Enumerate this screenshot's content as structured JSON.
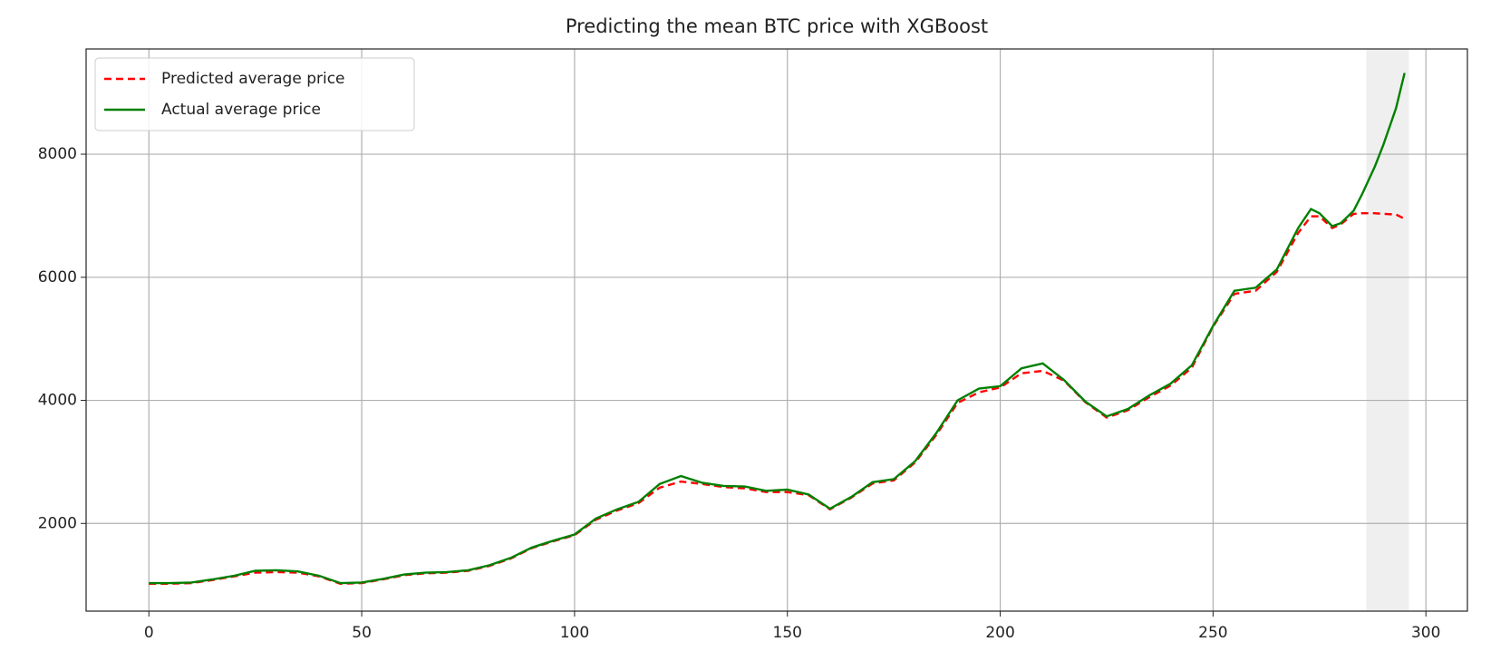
{
  "chart_data": {
    "type": "line",
    "title": "Predicting the mean BTC price with XGBoost",
    "x": [
      0,
      5,
      10,
      15,
      20,
      25,
      30,
      35,
      40,
      45,
      50,
      55,
      60,
      65,
      70,
      75,
      80,
      85,
      90,
      95,
      100,
      105,
      110,
      115,
      120,
      125,
      130,
      135,
      140,
      145,
      150,
      155,
      160,
      165,
      170,
      175,
      180,
      185,
      190,
      195,
      200,
      205,
      210,
      215,
      220,
      225,
      230,
      235,
      240,
      245,
      250,
      255,
      260,
      265,
      270,
      273,
      275,
      278,
      280,
      283,
      285,
      288,
      290,
      293,
      295
    ],
    "series": [
      {
        "name": "Predicted average price",
        "color": "red",
        "linestyle": "dashed",
        "values": [
          1020,
          1020,
          1030,
          1080,
          1140,
          1200,
          1210,
          1200,
          1140,
          1020,
          1030,
          1090,
          1160,
          1190,
          1200,
          1230,
          1310,
          1430,
          1600,
          1710,
          1810,
          2060,
          2210,
          2330,
          2580,
          2680,
          2640,
          2590,
          2570,
          2510,
          2510,
          2460,
          2230,
          2420,
          2650,
          2700,
          2990,
          3440,
          3960,
          4130,
          4210,
          4440,
          4480,
          4320,
          3970,
          3720,
          3840,
          4050,
          4240,
          4530,
          5200,
          5730,
          5780,
          6090,
          6720,
          6990,
          6990,
          6800,
          6860,
          7030,
          7040,
          7040,
          7030,
          7020,
          6950
        ]
      },
      {
        "name": "Actual average price",
        "color": "green",
        "linestyle": "solid",
        "values": [
          1030,
          1030,
          1040,
          1090,
          1150,
          1230,
          1240,
          1220,
          1150,
          1030,
          1040,
          1100,
          1170,
          1200,
          1210,
          1240,
          1320,
          1440,
          1610,
          1720,
          1820,
          2080,
          2230,
          2350,
          2640,
          2770,
          2660,
          2610,
          2600,
          2530,
          2550,
          2470,
          2240,
          2430,
          2670,
          2720,
          3010,
          3470,
          4000,
          4190,
          4230,
          4520,
          4600,
          4330,
          3980,
          3740,
          3860,
          4080,
          4270,
          4570,
          5210,
          5780,
          5830,
          6130,
          6800,
          7110,
          7040,
          6830,
          6880,
          7080,
          7350,
          7800,
          8150,
          8750,
          9320
        ]
      }
    ],
    "xlim": [
      -14.75,
      309.75
    ],
    "ylim": [
      575,
      9710
    ],
    "xticks": [
      0,
      50,
      100,
      150,
      200,
      250,
      300
    ],
    "yticks": [
      2000,
      4000,
      6000,
      8000
    ],
    "highlight_xspan": [
      286,
      296
    ],
    "highlight_color": "#efefef",
    "grid": true,
    "legend": "upper-left"
  }
}
